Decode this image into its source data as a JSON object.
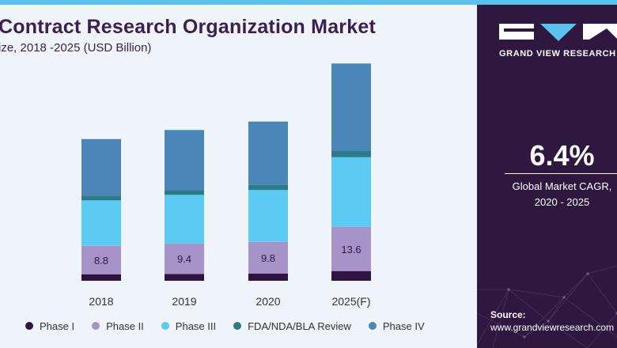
{
  "header": {
    "title": "Contract Research Organization Market",
    "subtitle": "ize, 2018 -2025 (USD Billion)"
  },
  "sidebar": {
    "brand": "GRAND VIEW RESEARCH",
    "cagr_value": "6.4%",
    "cagr_label": "Global Market CAGR,",
    "cagr_period": "2020 - 2025",
    "source_label": "Source:",
    "source_url": "www.grandviewresearch.com"
  },
  "colors": {
    "accent": "#5bc0eb",
    "panel": "#2e1840",
    "title": "#3a1f4f"
  },
  "chart_data": {
    "type": "bar",
    "stacked": true,
    "categories": [
      "2018",
      "2019",
      "2020",
      "2025(F)"
    ],
    "series": [
      {
        "name": "Phase I",
        "color": "#2e1440",
        "values": [
          2.0,
          2.1,
          2.2,
          3.0
        ]
      },
      {
        "name": "Phase II",
        "color": "#a793c8",
        "values": [
          8.8,
          9.4,
          9.8,
          13.6
        ]
      },
      {
        "name": "Phase III",
        "color": "#5ccbf3",
        "values": [
          14.0,
          15.0,
          16.0,
          21.5
        ]
      },
      {
        "name": "FDA/NDA/BLA Review",
        "color": "#2c7b88",
        "values": [
          1.4,
          1.5,
          1.6,
          1.9
        ]
      },
      {
        "name": "Phase IV",
        "color": "#4a86b8",
        "values": [
          17.5,
          18.5,
          19.5,
          27.0
        ]
      }
    ],
    "data_labels": {
      "series": "Phase II",
      "values": [
        "8.8",
        "9.4",
        "9.8",
        "13.6"
      ]
    },
    "legend_position": "bottom",
    "grid": false
  }
}
